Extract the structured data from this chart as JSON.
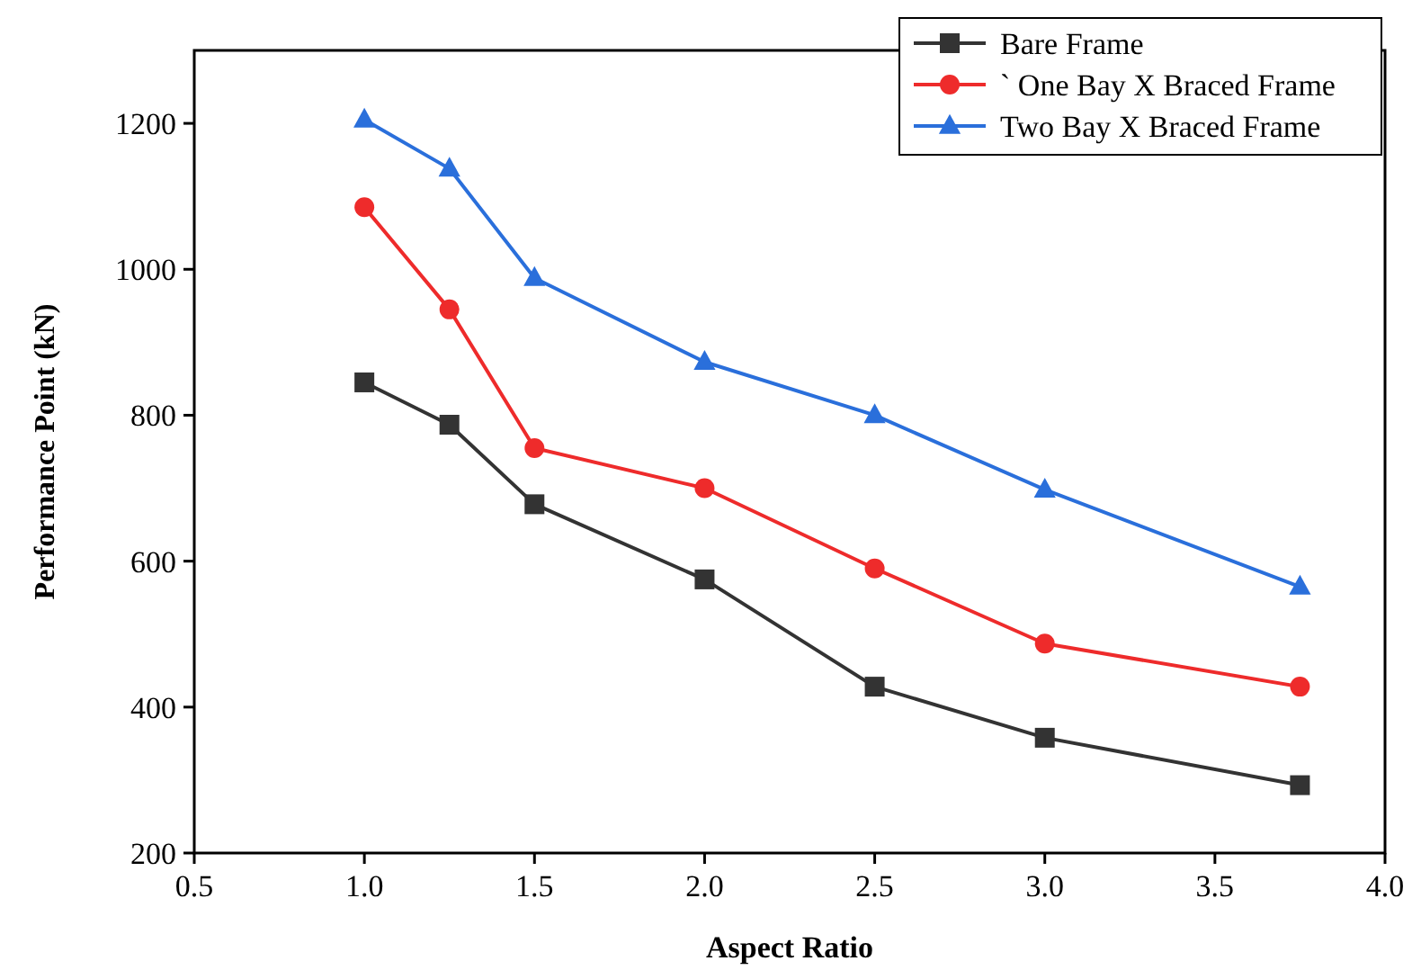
{
  "chart_data": {
    "type": "line",
    "xlabel": "Aspect Ratio",
    "ylabel": "Performance Point (kN)",
    "x": [
      1.0,
      1.25,
      1.5,
      2.0,
      2.5,
      3.0,
      3.75
    ],
    "xlim": [
      0.5,
      4.0
    ],
    "xticks": [
      {
        "value": 0.5,
        "label": "0.5"
      },
      {
        "value": 1.0,
        "label": "1.0"
      },
      {
        "value": 1.5,
        "label": "1.5"
      },
      {
        "value": 2.0,
        "label": "2.0"
      },
      {
        "value": 2.5,
        "label": "2.5"
      },
      {
        "value": 3.0,
        "label": "3.0"
      },
      {
        "value": 3.5,
        "label": "3.5"
      },
      {
        "value": 4.0,
        "label": "4.0"
      }
    ],
    "ylim": [
      200,
      1300
    ],
    "yticks": [
      200,
      400,
      600,
      800,
      1000,
      1200
    ],
    "grid": false,
    "legend": "top right",
    "series": [
      {
        "name": "Bare Frame",
        "color": "#333333",
        "marker": "square",
        "values": [
          845,
          787,
          678,
          575,
          428,
          358,
          293
        ]
      },
      {
        "name": "` One Bay X Braced Frame",
        "color": "#ee2b2b",
        "marker": "circle",
        "values": [
          1085,
          945,
          755,
          700,
          590,
          487,
          428
        ]
      },
      {
        "name": "Two Bay X Braced Frame",
        "color": "#2a6fdb",
        "marker": "triangle",
        "values": [
          1205,
          1138,
          988,
          873,
          800,
          698,
          565
        ]
      }
    ]
  }
}
